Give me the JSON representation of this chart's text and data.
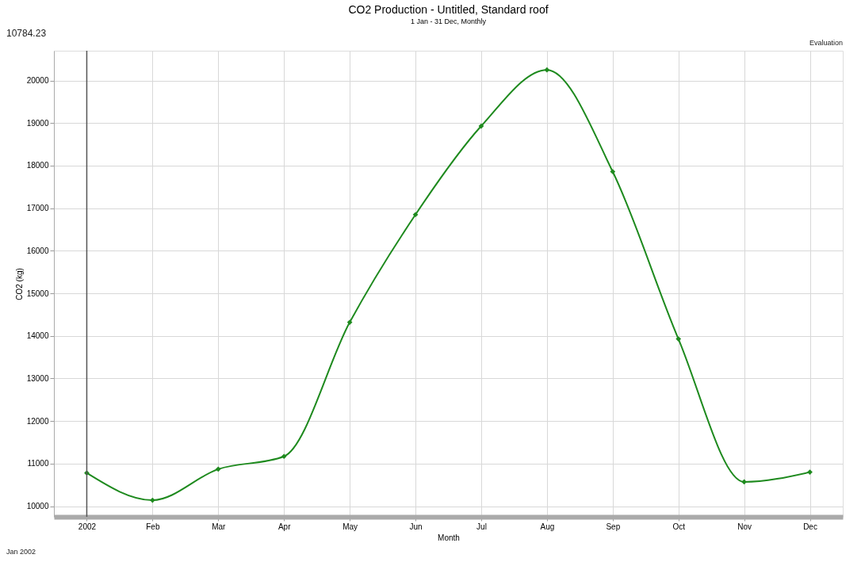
{
  "chart_data": {
    "type": "line",
    "title": "CO2 Production - Untitled, Standard roof",
    "subtitle": "1 Jan - 31 Dec, Monthly",
    "xlabel": "Month",
    "ylabel": "CO2 (kg)",
    "annotations": [
      "10784.23",
      "Evaluation",
      "Jan 2002"
    ],
    "categories": [
      "2002",
      "Feb",
      "Mar",
      "Apr",
      "May",
      "Jun",
      "Jul",
      "Aug",
      "Sep",
      "Oct",
      "Nov",
      "Dec"
    ],
    "series": [
      {
        "color": "#1e8a1e",
        "values": [
          10780,
          10140,
          10870,
          11170,
          14320,
          16850,
          18930,
          20250,
          17860,
          13930,
          10570,
          10800
        ]
      }
    ],
    "ylim": [
      9750,
      20700
    ],
    "yticks": [
      10000,
      11000,
      12000,
      13000,
      14000,
      15000,
      16000,
      17000,
      18000,
      19000,
      20000
    ],
    "ref_lines": [
      {
        "axis": "x",
        "value": "2002",
        "color": "#555555"
      }
    ],
    "grid": true,
    "marker": "diamond",
    "line_style": "solid"
  }
}
